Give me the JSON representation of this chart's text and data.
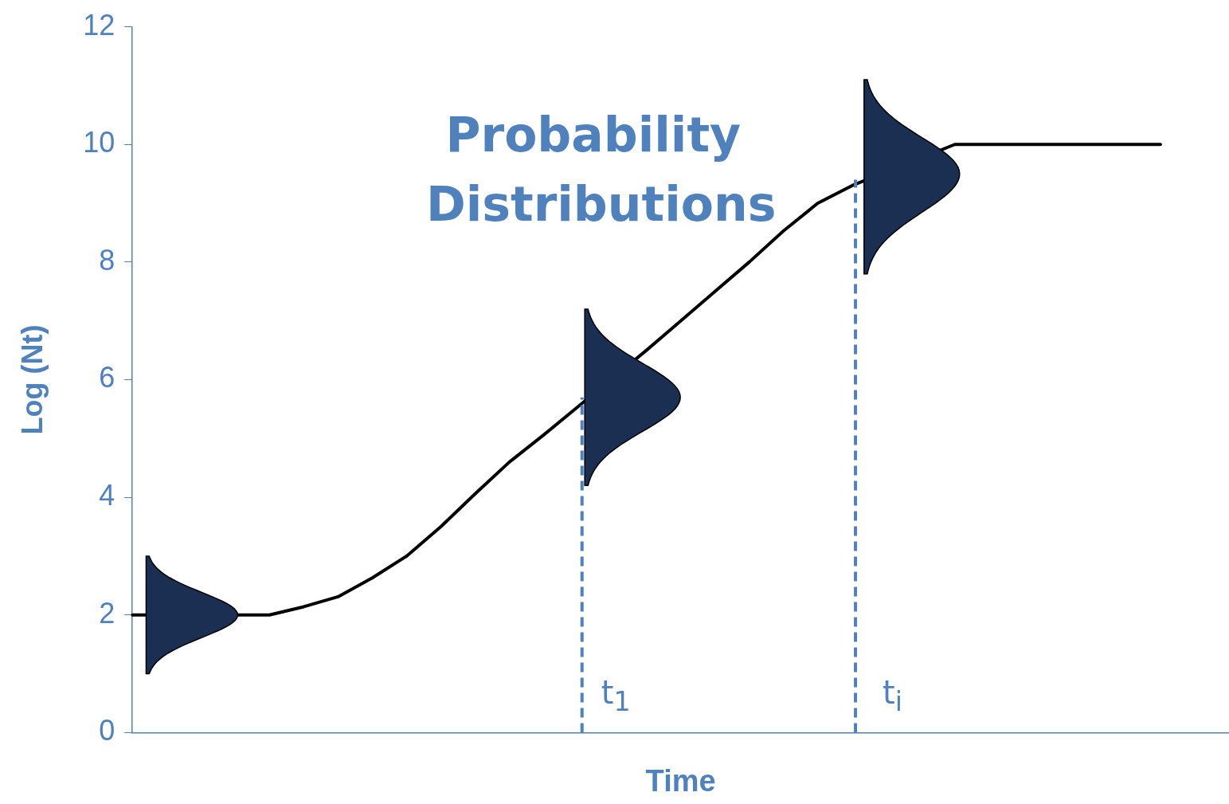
{
  "chart_data": {
    "type": "line",
    "xlabel": "Time",
    "ylabel": "Log (Nt)",
    "categories": [
      null,
      null,
      null,
      null,
      null,
      null,
      null,
      null,
      null,
      null,
      null,
      null,
      null,
      null,
      null,
      null,
      null,
      null,
      null,
      null,
      null,
      null,
      null,
      null,
      null,
      null,
      null,
      null,
      null,
      null,
      null,
      null,
      null
    ],
    "series": [
      {
        "color": "#000000",
        "values": [
          2,
          null,
          null,
          null,
          2,
          2.14,
          2.31,
          2.63,
          3.0,
          3.5,
          4.06,
          4.6,
          5.06,
          5.54,
          null,
          6.5,
          7.0,
          7.5,
          8.0,
          8.53,
          9.0,
          9.3,
          null,
          null,
          10,
          10,
          10,
          10,
          10,
          10,
          10,
          null,
          null
        ]
      }
    ],
    "ylim": [
      0,
      12
    ],
    "yticks": [
      0,
      2,
      4,
      6,
      8,
      10,
      12
    ],
    "tick_labels": "y",
    "grid": false,
    "legend": false,
    "marker": "none",
    "line_style": "solid",
    "annotations": [
      "Probability Distributions",
      "t$_{1}$",
      "t$_{i}$"
    ]
  }
}
